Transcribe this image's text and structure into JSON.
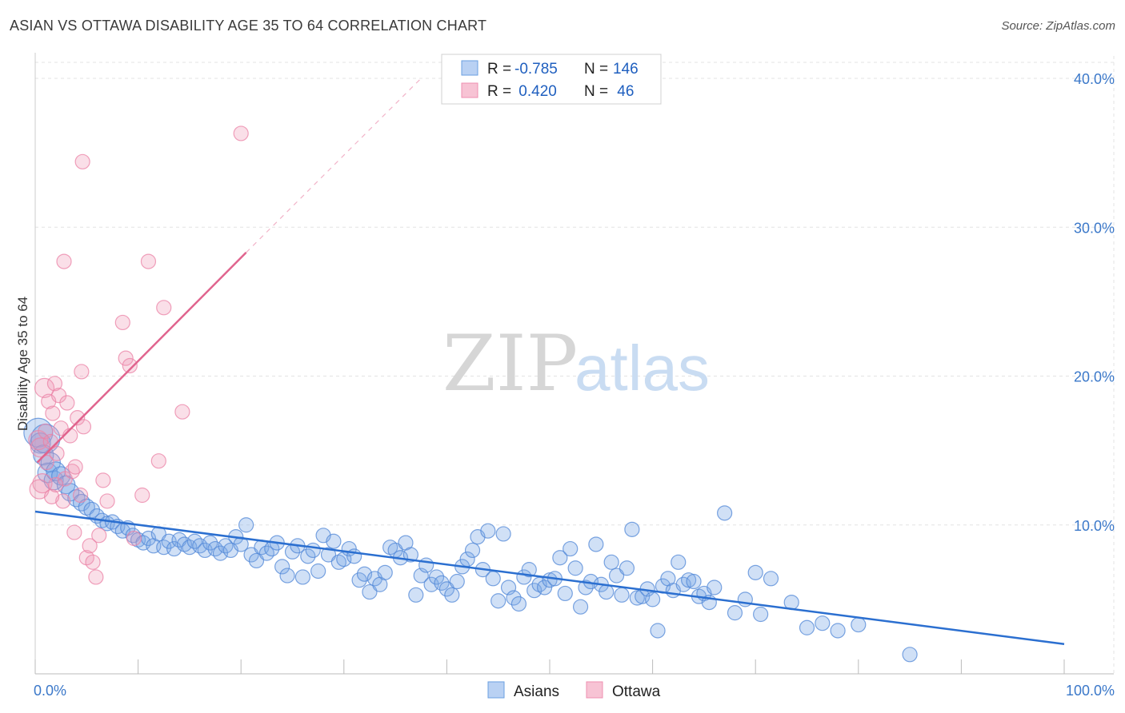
{
  "title": "ASIAN VS OTTAWA DISABILITY AGE 35 TO 64 CORRELATION CHART",
  "source": "Source: ZipAtlas.com",
  "watermark": {
    "zip": "ZIP",
    "atlas": "atlas"
  },
  "chart_data": {
    "type": "scatter",
    "title": "ASIAN VS OTTAWA DISABILITY AGE 35 TO 64 CORRELATION CHART",
    "xlabel": "",
    "ylabel": "Disability Age 35 to 64",
    "xlim": [
      0,
      100
    ],
    "ylim": [
      0,
      40
    ],
    "y_ticks": [
      10,
      20,
      30,
      40
    ],
    "y_tick_labels": [
      "10.0%",
      "20.0%",
      "30.0%",
      "40.0%"
    ],
    "x_tick_labels": [
      "0.0%",
      "100.0%"
    ],
    "grid": true,
    "legend_top": [
      {
        "r_label": "R = ",
        "r_value": "-0.785",
        "n_label": "N = ",
        "n_value": "146"
      },
      {
        "r_label": "R = ",
        "r_value": " 0.420",
        "n_label": "N = ",
        "n_value": " 46"
      }
    ],
    "series": [
      {
        "name": "Asians",
        "color": "#6a9fe0",
        "line_color": "#2b6fd0",
        "trend": {
          "x0": 0,
          "y0": 10.9,
          "x1": 100,
          "y1": 2.0
        },
        "points": [
          [
            0.3,
            16.2
          ],
          [
            0.5,
            15.5
          ],
          [
            0.8,
            14.7
          ],
          [
            1.0,
            15.8
          ],
          [
            1.2,
            13.5
          ],
          [
            1.5,
            14.2
          ],
          [
            1.8,
            13.0
          ],
          [
            2.0,
            13.6
          ],
          [
            2.5,
            13.3
          ],
          [
            3.0,
            12.7
          ],
          [
            3.4,
            12.2
          ],
          [
            4.0,
            11.8
          ],
          [
            4.5,
            11.5
          ],
          [
            5.0,
            11.2
          ],
          [
            5.5,
            11.0
          ],
          [
            6.0,
            10.6
          ],
          [
            6.5,
            10.3
          ],
          [
            7.0,
            10.1
          ],
          [
            7.5,
            10.2
          ],
          [
            8.0,
            9.9
          ],
          [
            8.5,
            9.6
          ],
          [
            9.0,
            9.8
          ],
          [
            9.5,
            9.3
          ],
          [
            10.0,
            9.0
          ],
          [
            10.5,
            8.8
          ],
          [
            11.0,
            9.1
          ],
          [
            11.5,
            8.6
          ],
          [
            12.0,
            9.4
          ],
          [
            12.5,
            8.5
          ],
          [
            13.0,
            8.9
          ],
          [
            13.5,
            8.4
          ],
          [
            14.0,
            9.0
          ],
          [
            14.5,
            8.7
          ],
          [
            15.0,
            8.5
          ],
          [
            15.5,
            8.9
          ],
          [
            16.0,
            8.6
          ],
          [
            16.5,
            8.3
          ],
          [
            17.0,
            8.8
          ],
          [
            17.5,
            8.4
          ],
          [
            18.0,
            8.1
          ],
          [
            18.5,
            8.6
          ],
          [
            19.0,
            8.3
          ],
          [
            19.5,
            9.2
          ],
          [
            20.0,
            8.7
          ],
          [
            20.5,
            10.0
          ],
          [
            21.0,
            8.0
          ],
          [
            21.5,
            7.6
          ],
          [
            22.0,
            8.5
          ],
          [
            22.5,
            8.1
          ],
          [
            23.0,
            8.4
          ],
          [
            23.5,
            8.8
          ],
          [
            24.0,
            7.2
          ],
          [
            24.5,
            6.6
          ],
          [
            25.0,
            8.2
          ],
          [
            25.5,
            8.6
          ],
          [
            26.0,
            6.5
          ],
          [
            26.5,
            7.9
          ],
          [
            27.0,
            8.3
          ],
          [
            27.5,
            6.9
          ],
          [
            28.0,
            9.3
          ],
          [
            28.5,
            8.0
          ],
          [
            29.0,
            8.9
          ],
          [
            29.5,
            7.5
          ],
          [
            30.0,
            7.7
          ],
          [
            30.5,
            8.4
          ],
          [
            31.0,
            7.9
          ],
          [
            31.5,
            6.3
          ],
          [
            32.0,
            6.7
          ],
          [
            32.5,
            5.5
          ],
          [
            33.0,
            6.4
          ],
          [
            33.5,
            6.0
          ],
          [
            34.0,
            6.8
          ],
          [
            34.5,
            8.5
          ],
          [
            35.0,
            8.3
          ],
          [
            35.5,
            7.8
          ],
          [
            36.0,
            8.8
          ],
          [
            36.5,
            8.0
          ],
          [
            37.0,
            5.3
          ],
          [
            37.5,
            6.6
          ],
          [
            38.0,
            7.3
          ],
          [
            38.5,
            6.0
          ],
          [
            39.0,
            6.5
          ],
          [
            39.5,
            6.1
          ],
          [
            40.0,
            5.7
          ],
          [
            40.5,
            5.3
          ],
          [
            41.0,
            6.2
          ],
          [
            41.5,
            7.2
          ],
          [
            42.0,
            7.7
          ],
          [
            42.5,
            8.3
          ],
          [
            43.0,
            9.2
          ],
          [
            43.5,
            7.0
          ],
          [
            44.0,
            9.6
          ],
          [
            44.5,
            6.4
          ],
          [
            45.0,
            4.9
          ],
          [
            45.5,
            9.4
          ],
          [
            46.0,
            5.8
          ],
          [
            46.5,
            5.1
          ],
          [
            47.0,
            4.7
          ],
          [
            47.5,
            6.5
          ],
          [
            48.0,
            7.0
          ],
          [
            48.5,
            5.6
          ],
          [
            49.0,
            6.0
          ],
          [
            49.5,
            5.8
          ],
          [
            50.0,
            6.3
          ],
          [
            50.5,
            6.4
          ],
          [
            51.0,
            7.8
          ],
          [
            51.5,
            5.4
          ],
          [
            52.0,
            8.4
          ],
          [
            52.5,
            7.1
          ],
          [
            53.0,
            4.5
          ],
          [
            53.5,
            5.8
          ],
          [
            54.0,
            6.2
          ],
          [
            54.5,
            8.7
          ],
          [
            55.0,
            6.0
          ],
          [
            55.5,
            5.5
          ],
          [
            56.0,
            7.5
          ],
          [
            56.5,
            6.6
          ],
          [
            57.0,
            5.3
          ],
          [
            57.5,
            7.1
          ],
          [
            58.0,
            9.7
          ],
          [
            58.5,
            5.1
          ],
          [
            59.0,
            5.2
          ],
          [
            59.5,
            5.7
          ],
          [
            60.0,
            5.0
          ],
          [
            60.5,
            2.9
          ],
          [
            61.0,
            5.9
          ],
          [
            61.5,
            6.4
          ],
          [
            62.0,
            5.6
          ],
          [
            62.5,
            7.5
          ],
          [
            63.0,
            6.0
          ],
          [
            63.5,
            6.3
          ],
          [
            64.0,
            6.2
          ],
          [
            64.5,
            5.2
          ],
          [
            65.0,
            5.4
          ],
          [
            65.5,
            4.8
          ],
          [
            66.0,
            5.8
          ],
          [
            67.0,
            10.8
          ],
          [
            68.0,
            4.1
          ],
          [
            69.0,
            5.0
          ],
          [
            70.0,
            6.8
          ],
          [
            70.5,
            4.0
          ],
          [
            71.5,
            6.4
          ],
          [
            73.5,
            4.8
          ],
          [
            75.0,
            3.1
          ],
          [
            76.5,
            3.4
          ],
          [
            78.0,
            2.9
          ],
          [
            80.0,
            3.3
          ],
          [
            85.0,
            1.3
          ]
        ]
      },
      {
        "name": "Ottawa",
        "color": "#ef8fb0",
        "line_color": "#e0648e",
        "trend": {
          "x0": 0.2,
          "y0": 14.2,
          "x1": 20.5,
          "y1": 28.3
        },
        "trend_ext": {
          "x0": 20.5,
          "y0": 28.3,
          "x1": 37.5,
          "y1": 40.0
        },
        "points": [
          [
            0.3,
            15.7
          ],
          [
            0.5,
            15.2
          ],
          [
            0.7,
            12.8
          ],
          [
            0.9,
            19.2
          ],
          [
            1.0,
            16.3
          ],
          [
            1.1,
            14.2
          ],
          [
            1.3,
            18.3
          ],
          [
            1.5,
            15.6
          ],
          [
            1.7,
            17.5
          ],
          [
            1.9,
            19.5
          ],
          [
            2.1,
            14.8
          ],
          [
            2.3,
            18.7
          ],
          [
            2.5,
            16.5
          ],
          [
            2.7,
            11.6
          ],
          [
            2.9,
            13.1
          ],
          [
            3.1,
            18.2
          ],
          [
            3.4,
            16.0
          ],
          [
            3.6,
            13.6
          ],
          [
            3.9,
            13.9
          ],
          [
            4.1,
            17.2
          ],
          [
            4.4,
            12.0
          ],
          [
            4.7,
            16.6
          ],
          [
            5.0,
            7.8
          ],
          [
            5.3,
            8.6
          ],
          [
            5.6,
            7.5
          ],
          [
            5.9,
            6.5
          ],
          [
            6.2,
            9.3
          ],
          [
            6.6,
            13.0
          ],
          [
            7.0,
            11.6
          ],
          [
            2.8,
            27.7
          ],
          [
            4.6,
            34.4
          ],
          [
            8.5,
            23.6
          ],
          [
            8.8,
            21.2
          ],
          [
            9.2,
            20.7
          ],
          [
            9.6,
            9.1
          ],
          [
            10.4,
            12.0
          ],
          [
            11.0,
            27.7
          ],
          [
            12.0,
            14.3
          ],
          [
            12.5,
            24.6
          ],
          [
            14.3,
            17.6
          ],
          [
            20.0,
            36.3
          ],
          [
            4.5,
            20.3
          ],
          [
            3.8,
            9.5
          ],
          [
            0.4,
            12.4
          ],
          [
            1.6,
            11.9
          ],
          [
            2.0,
            12.7
          ]
        ]
      }
    ]
  }
}
